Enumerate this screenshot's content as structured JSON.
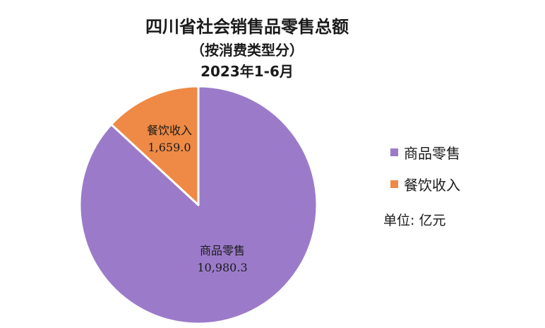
{
  "chart_data": {
    "type": "pie",
    "title": "四川省社会销售品零售总额",
    "subtitle": "（按消费类型分）",
    "period": "2023年1-6月",
    "unit_label": "单位: 亿元",
    "slices": [
      {
        "name": "商品零售",
        "value": 10980.3,
        "value_label": "10,980.3",
        "color": "#9b7bc9"
      },
      {
        "name": "餐饮收入",
        "value": 1659.0,
        "value_label": "1,659.0",
        "color": "#ee8a45"
      }
    ],
    "legend": {
      "position": "right",
      "items": [
        {
          "name": "商品零售",
          "color": "#9b7bc9"
        },
        {
          "name": "餐饮收入",
          "color": "#ee8a45"
        }
      ]
    }
  }
}
